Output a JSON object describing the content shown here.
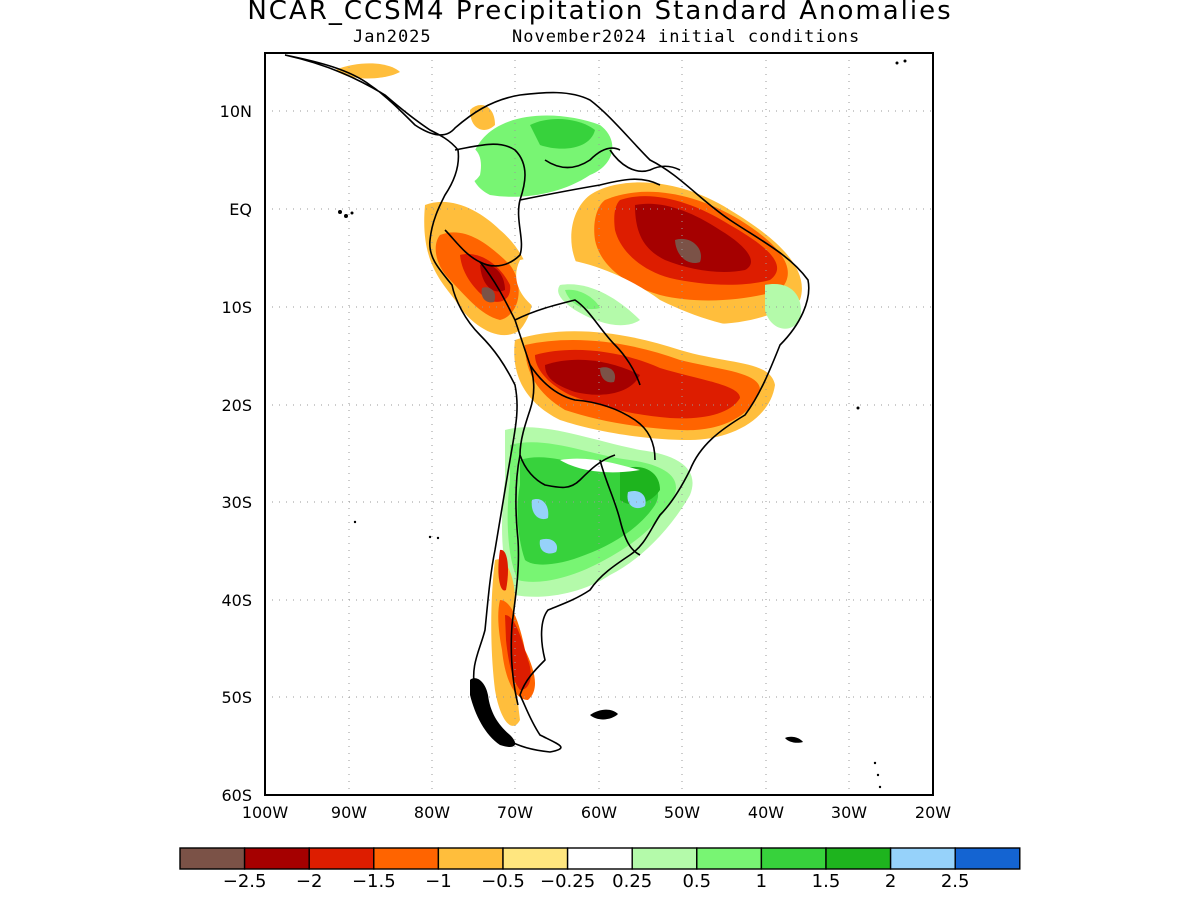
{
  "title": "NCAR_CCSM4 Precipitation Standard Anomalies",
  "subtitle_left": "Jan2025",
  "subtitle_right": "November2024 initial conditions",
  "map": {
    "lat_labels": [
      "10N",
      "EQ",
      "10S",
      "20S",
      "30S",
      "40S",
      "50S",
      "60S"
    ],
    "lat_values": [
      10,
      0,
      -10,
      -20,
      -30,
      -40,
      -50,
      -60
    ],
    "lon_labels": [
      "100W",
      "90W",
      "80W",
      "70W",
      "60W",
      "50W",
      "40W",
      "30W",
      "20W"
    ],
    "lon_values": [
      -100,
      -90,
      -80,
      -70,
      -60,
      -50,
      -40,
      -30,
      -20
    ],
    "grid": true,
    "region": "South America"
  },
  "colorbar": {
    "colors": [
      "#7b5247",
      "#a50000",
      "#dd1d00",
      "#ff6400",
      "#ffbe3c",
      "#ffe67f",
      "#ffffff",
      "#b4faaa",
      "#78f573",
      "#37d23c",
      "#1eb41e",
      "#96d2fa",
      "#1464d2"
    ],
    "labels": [
      "−2.5",
      "−2",
      "−1.5",
      "−1",
      "−0.5",
      "−0.25",
      "0.25",
      "0.5",
      "1",
      "1.5",
      "2",
      "2.5"
    ]
  }
}
